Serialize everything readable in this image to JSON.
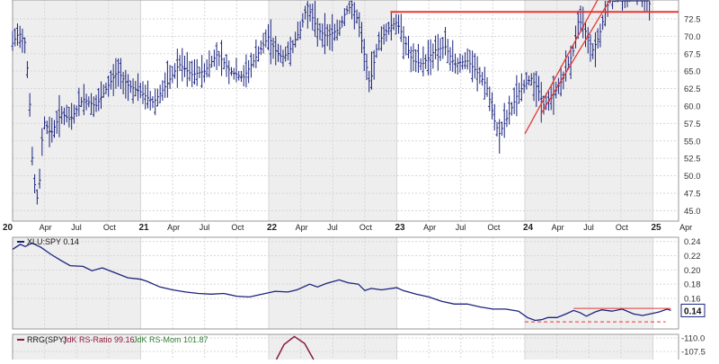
{
  "chart_data": [
    {
      "panel": "price",
      "type": "ohlc",
      "y_ticks": [
        45.0,
        47.5,
        50.0,
        52.5,
        55.0,
        57.5,
        60.0,
        62.5,
        65.0,
        67.5,
        70.0,
        72.5
      ],
      "x_ticks": [
        {
          "label": "20",
          "year": true
        },
        {
          "label": "Apr"
        },
        {
          "label": "Jul"
        },
        {
          "label": "Oct"
        },
        {
          "label": "21",
          "year": true
        },
        {
          "label": "Apr"
        },
        {
          "label": "Jul"
        },
        {
          "label": "Oct"
        },
        {
          "label": "22",
          "year": true
        },
        {
          "label": "Apr"
        },
        {
          "label": "Jul"
        },
        {
          "label": "Oct"
        },
        {
          "label": "23",
          "year": true
        },
        {
          "label": "Apr"
        },
        {
          "label": "Jul"
        },
        {
          "label": "Oct"
        },
        {
          "label": "24",
          "year": true
        },
        {
          "label": "Apr"
        },
        {
          "label": "Jul"
        },
        {
          "label": "Oct"
        },
        {
          "label": "25",
          "year": true
        },
        {
          "label": "Apr"
        }
      ],
      "x_range": [
        2020.0,
        2025.2
      ],
      "y_range": [
        43.5,
        75.2
      ],
      "close_path": [
        [
          2020.0,
          69.0
        ],
        [
          2020.05,
          70.5
        ],
        [
          2020.1,
          69.0
        ],
        [
          2020.13,
          62.0
        ],
        [
          2020.16,
          50.0
        ],
        [
          2020.2,
          46.0
        ],
        [
          2020.24,
          58.0
        ],
        [
          2020.3,
          56.0
        ],
        [
          2020.38,
          59.0
        ],
        [
          2020.45,
          58.0
        ],
        [
          2020.55,
          61.0
        ],
        [
          2020.65,
          60.0
        ],
        [
          2020.75,
          63.0
        ],
        [
          2020.82,
          65.0
        ],
        [
          2020.9,
          63.0
        ],
        [
          2021.0,
          62.0
        ],
        [
          2021.1,
          60.5
        ],
        [
          2021.2,
          63.0
        ],
        [
          2021.3,
          66.0
        ],
        [
          2021.4,
          64.5
        ],
        [
          2021.5,
          65.0
        ],
        [
          2021.6,
          67.5
        ],
        [
          2021.7,
          65.0
        ],
        [
          2021.8,
          64.0
        ],
        [
          2021.9,
          67.0
        ],
        [
          2022.0,
          70.0
        ],
        [
          2022.05,
          68.0
        ],
        [
          2022.1,
          67.0
        ],
        [
          2022.15,
          67.5
        ],
        [
          2022.25,
          71.0
        ],
        [
          2022.3,
          74.5
        ],
        [
          2022.38,
          71.0
        ],
        [
          2022.45,
          70.0
        ],
        [
          2022.55,
          71.0
        ],
        [
          2022.6,
          73.5
        ],
        [
          2022.65,
          74.5
        ],
        [
          2022.7,
          72.0
        ],
        [
          2022.75,
          67.0
        ],
        [
          2022.79,
          63.0
        ],
        [
          2022.85,
          69.0
        ],
        [
          2022.95,
          71.5
        ],
        [
          2023.0,
          72.0
        ],
        [
          2023.05,
          70.0
        ],
        [
          2023.12,
          66.5
        ],
        [
          2023.2,
          66.0
        ],
        [
          2023.3,
          68.0
        ],
        [
          2023.38,
          68.5
        ],
        [
          2023.45,
          66.0
        ],
        [
          2023.55,
          66.5
        ],
        [
          2023.62,
          65.0
        ],
        [
          2023.7,
          63.0
        ],
        [
          2023.76,
          58.0
        ],
        [
          2023.8,
          56.0
        ],
        [
          2023.88,
          59.0
        ],
        [
          2023.95,
          62.0
        ],
        [
          2024.0,
          63.0
        ],
        [
          2024.05,
          64.0
        ],
        [
          2024.1,
          62.5
        ],
        [
          2024.15,
          60.0
        ],
        [
          2024.2,
          61.0
        ],
        [
          2024.3,
          64.0
        ],
        [
          2024.38,
          68.0
        ],
        [
          2024.42,
          72.5
        ],
        [
          2024.48,
          70.5
        ],
        [
          2024.53,
          68.0
        ],
        [
          2024.58,
          70.0
        ],
        [
          2024.62,
          73.0
        ],
        [
          2024.66,
          75.2
        ],
        [
          2024.72,
          76.0
        ],
        [
          2024.8,
          77.0
        ],
        [
          2024.9,
          76.5
        ],
        [
          2024.98,
          74.5
        ]
      ],
      "annotations": [
        {
          "type": "horizontal_line",
          "y": 73.5,
          "x_start": 2022.95,
          "x_end": 2025.2,
          "color": "#e53935"
        },
        {
          "type": "trendline",
          "from": [
            2024.0,
            56.0
          ],
          "to": [
            2024.68,
            79.0
          ],
          "color": "#e53935"
        },
        {
          "type": "trendline",
          "from": [
            2024.13,
            59.0
          ],
          "to": [
            2024.92,
            83.0
          ],
          "color": "#e53935"
        }
      ],
      "series_color": "#1a237e"
    },
    {
      "panel": "relative_strength",
      "type": "line",
      "legend": "XLU:SPY 0.14",
      "last_value_label": "0.14",
      "y_ticks": [
        0.16,
        0.18,
        0.2,
        0.22,
        0.24
      ],
      "y_range": [
        0.117,
        0.246
      ],
      "series": [
        {
          "name": "XLU:SPY",
          "color": "#1a237e",
          "points": [
            [
              2020.0,
              0.229
            ],
            [
              2020.06,
              0.236
            ],
            [
              2020.1,
              0.233
            ],
            [
              2020.15,
              0.238
            ],
            [
              2020.22,
              0.232
            ],
            [
              2020.3,
              0.222
            ],
            [
              2020.38,
              0.213
            ],
            [
              2020.45,
              0.206
            ],
            [
              2020.55,
              0.205
            ],
            [
              2020.62,
              0.199
            ],
            [
              2020.7,
              0.203
            ],
            [
              2020.8,
              0.196
            ],
            [
              2020.9,
              0.189
            ],
            [
              2021.0,
              0.187
            ],
            [
              2021.05,
              0.184
            ],
            [
              2021.15,
              0.176
            ],
            [
              2021.25,
              0.172
            ],
            [
              2021.35,
              0.169
            ],
            [
              2021.45,
              0.167
            ],
            [
              2021.55,
              0.166
            ],
            [
              2021.65,
              0.167
            ],
            [
              2021.75,
              0.163
            ],
            [
              2021.85,
              0.162
            ],
            [
              2021.95,
              0.166
            ],
            [
              2022.05,
              0.17
            ],
            [
              2022.15,
              0.169
            ],
            [
              2022.22,
              0.172
            ],
            [
              2022.32,
              0.18
            ],
            [
              2022.38,
              0.176
            ],
            [
              2022.45,
              0.181
            ],
            [
              2022.55,
              0.186
            ],
            [
              2022.62,
              0.182
            ],
            [
              2022.7,
              0.18
            ],
            [
              2022.75,
              0.171
            ],
            [
              2022.8,
              0.174
            ],
            [
              2022.88,
              0.172
            ],
            [
              2023.0,
              0.175
            ],
            [
              2023.05,
              0.171
            ],
            [
              2023.15,
              0.166
            ],
            [
              2023.25,
              0.162
            ],
            [
              2023.35,
              0.156
            ],
            [
              2023.45,
              0.152
            ],
            [
              2023.55,
              0.152
            ],
            [
              2023.65,
              0.148
            ],
            [
              2023.75,
              0.145
            ],
            [
              2023.85,
              0.145
            ],
            [
              2023.95,
              0.142
            ],
            [
              2024.02,
              0.133
            ],
            [
              2024.08,
              0.129
            ],
            [
              2024.13,
              0.13
            ],
            [
              2024.18,
              0.133
            ],
            [
              2024.25,
              0.133
            ],
            [
              2024.32,
              0.138
            ],
            [
              2024.38,
              0.143
            ],
            [
              2024.43,
              0.14
            ],
            [
              2024.48,
              0.135
            ],
            [
              2024.55,
              0.141
            ],
            [
              2024.6,
              0.144
            ],
            [
              2024.68,
              0.142
            ],
            [
              2024.76,
              0.145
            ],
            [
              2024.85,
              0.138
            ],
            [
              2024.92,
              0.136
            ],
            [
              2025.0,
              0.139
            ],
            [
              2025.05,
              0.141
            ],
            [
              2025.11,
              0.145
            ],
            [
              2025.14,
              0.143
            ]
          ]
        }
      ],
      "annotations": [
        {
          "type": "horizontal_line",
          "y": 0.146,
          "x_start": 2024.38,
          "x_end": 2025.14,
          "color": "#e53935",
          "style": "solid"
        },
        {
          "type": "horizontal_line",
          "y": 0.127,
          "x_start": 2024.0,
          "x_end": 2025.1,
          "color": "#e53935",
          "style": "dashed"
        }
      ]
    },
    {
      "panel": "rrg",
      "type": "line",
      "legend_prefix": "RRG(SPY)",
      "legend_ratio": "JdK RS-Ratio 99.16",
      "legend_mom": "JdK RS-Mom 101.87",
      "y_ticks": [
        110.0,
        107.5
      ],
      "y_range": [
        106.0,
        110.7
      ],
      "series": [
        {
          "name": "JdK RS-Ratio",
          "color": "#8b1a3a",
          "points": [
            [
              2022.06,
              106.0
            ],
            [
              2022.12,
              108.8
            ],
            [
              2022.2,
              110.3
            ],
            [
              2022.28,
              109.0
            ],
            [
              2022.35,
              106.0
            ]
          ]
        }
      ]
    }
  ]
}
